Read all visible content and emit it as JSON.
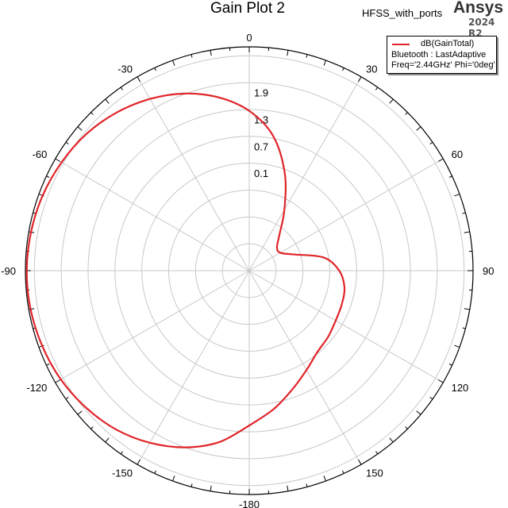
{
  "header": {
    "title": "Gain Plot 2",
    "project": "HFSS_with_ports",
    "brand": "Ansys",
    "version": "2024 R2"
  },
  "legend": {
    "series_name": "dB(GainTotal)",
    "line2": "Bluetooth : LastAdaptive",
    "line3": "Freq='2.44GHz' Phi='0deg'"
  },
  "colors": {
    "trace": "#e0242a",
    "grid": "#c8c8c8",
    "axis": "#000000"
  },
  "chart_data": {
    "type": "polar",
    "title": "Gain Plot 2",
    "angle_unit": "deg",
    "angle_ticks": [
      0,
      30,
      60,
      90,
      120,
      150,
      -180,
      -150,
      -120,
      -90,
      -60,
      -30
    ],
    "radial_ticks": [
      0.1,
      0.7,
      1.3,
      1.9
    ],
    "radial_range": [
      -1.9,
      3.1
    ],
    "series": [
      {
        "name": "dB(GainTotal)",
        "theta": [
          -180,
          -170,
          -160,
          -150,
          -140,
          -130,
          -120,
          -110,
          -100,
          -90,
          -80,
          -70,
          -60,
          -50,
          -40,
          -30,
          -20,
          -10,
          0,
          10,
          20,
          30,
          40,
          50,
          60,
          70,
          80,
          90,
          100,
          110,
          120,
          130,
          140,
          150,
          160,
          170,
          180
        ],
        "r": [
          1.56,
          1.99,
          2.3,
          2.54,
          2.73,
          2.86,
          2.96,
          3.02,
          3.06,
          3.07,
          3.05,
          3.01,
          2.94,
          2.85,
          2.71,
          2.53,
          2.31,
          2.03,
          1.67,
          1.16,
          0.42,
          -0.33,
          -0.85,
          -1.09,
          -1.1,
          -0.84,
          -0.21,
          0.11,
          0.26,
          0.3,
          0.33,
          0.4,
          0.47,
          0.66,
          0.92,
          1.24,
          1.56
        ]
      }
    ]
  }
}
